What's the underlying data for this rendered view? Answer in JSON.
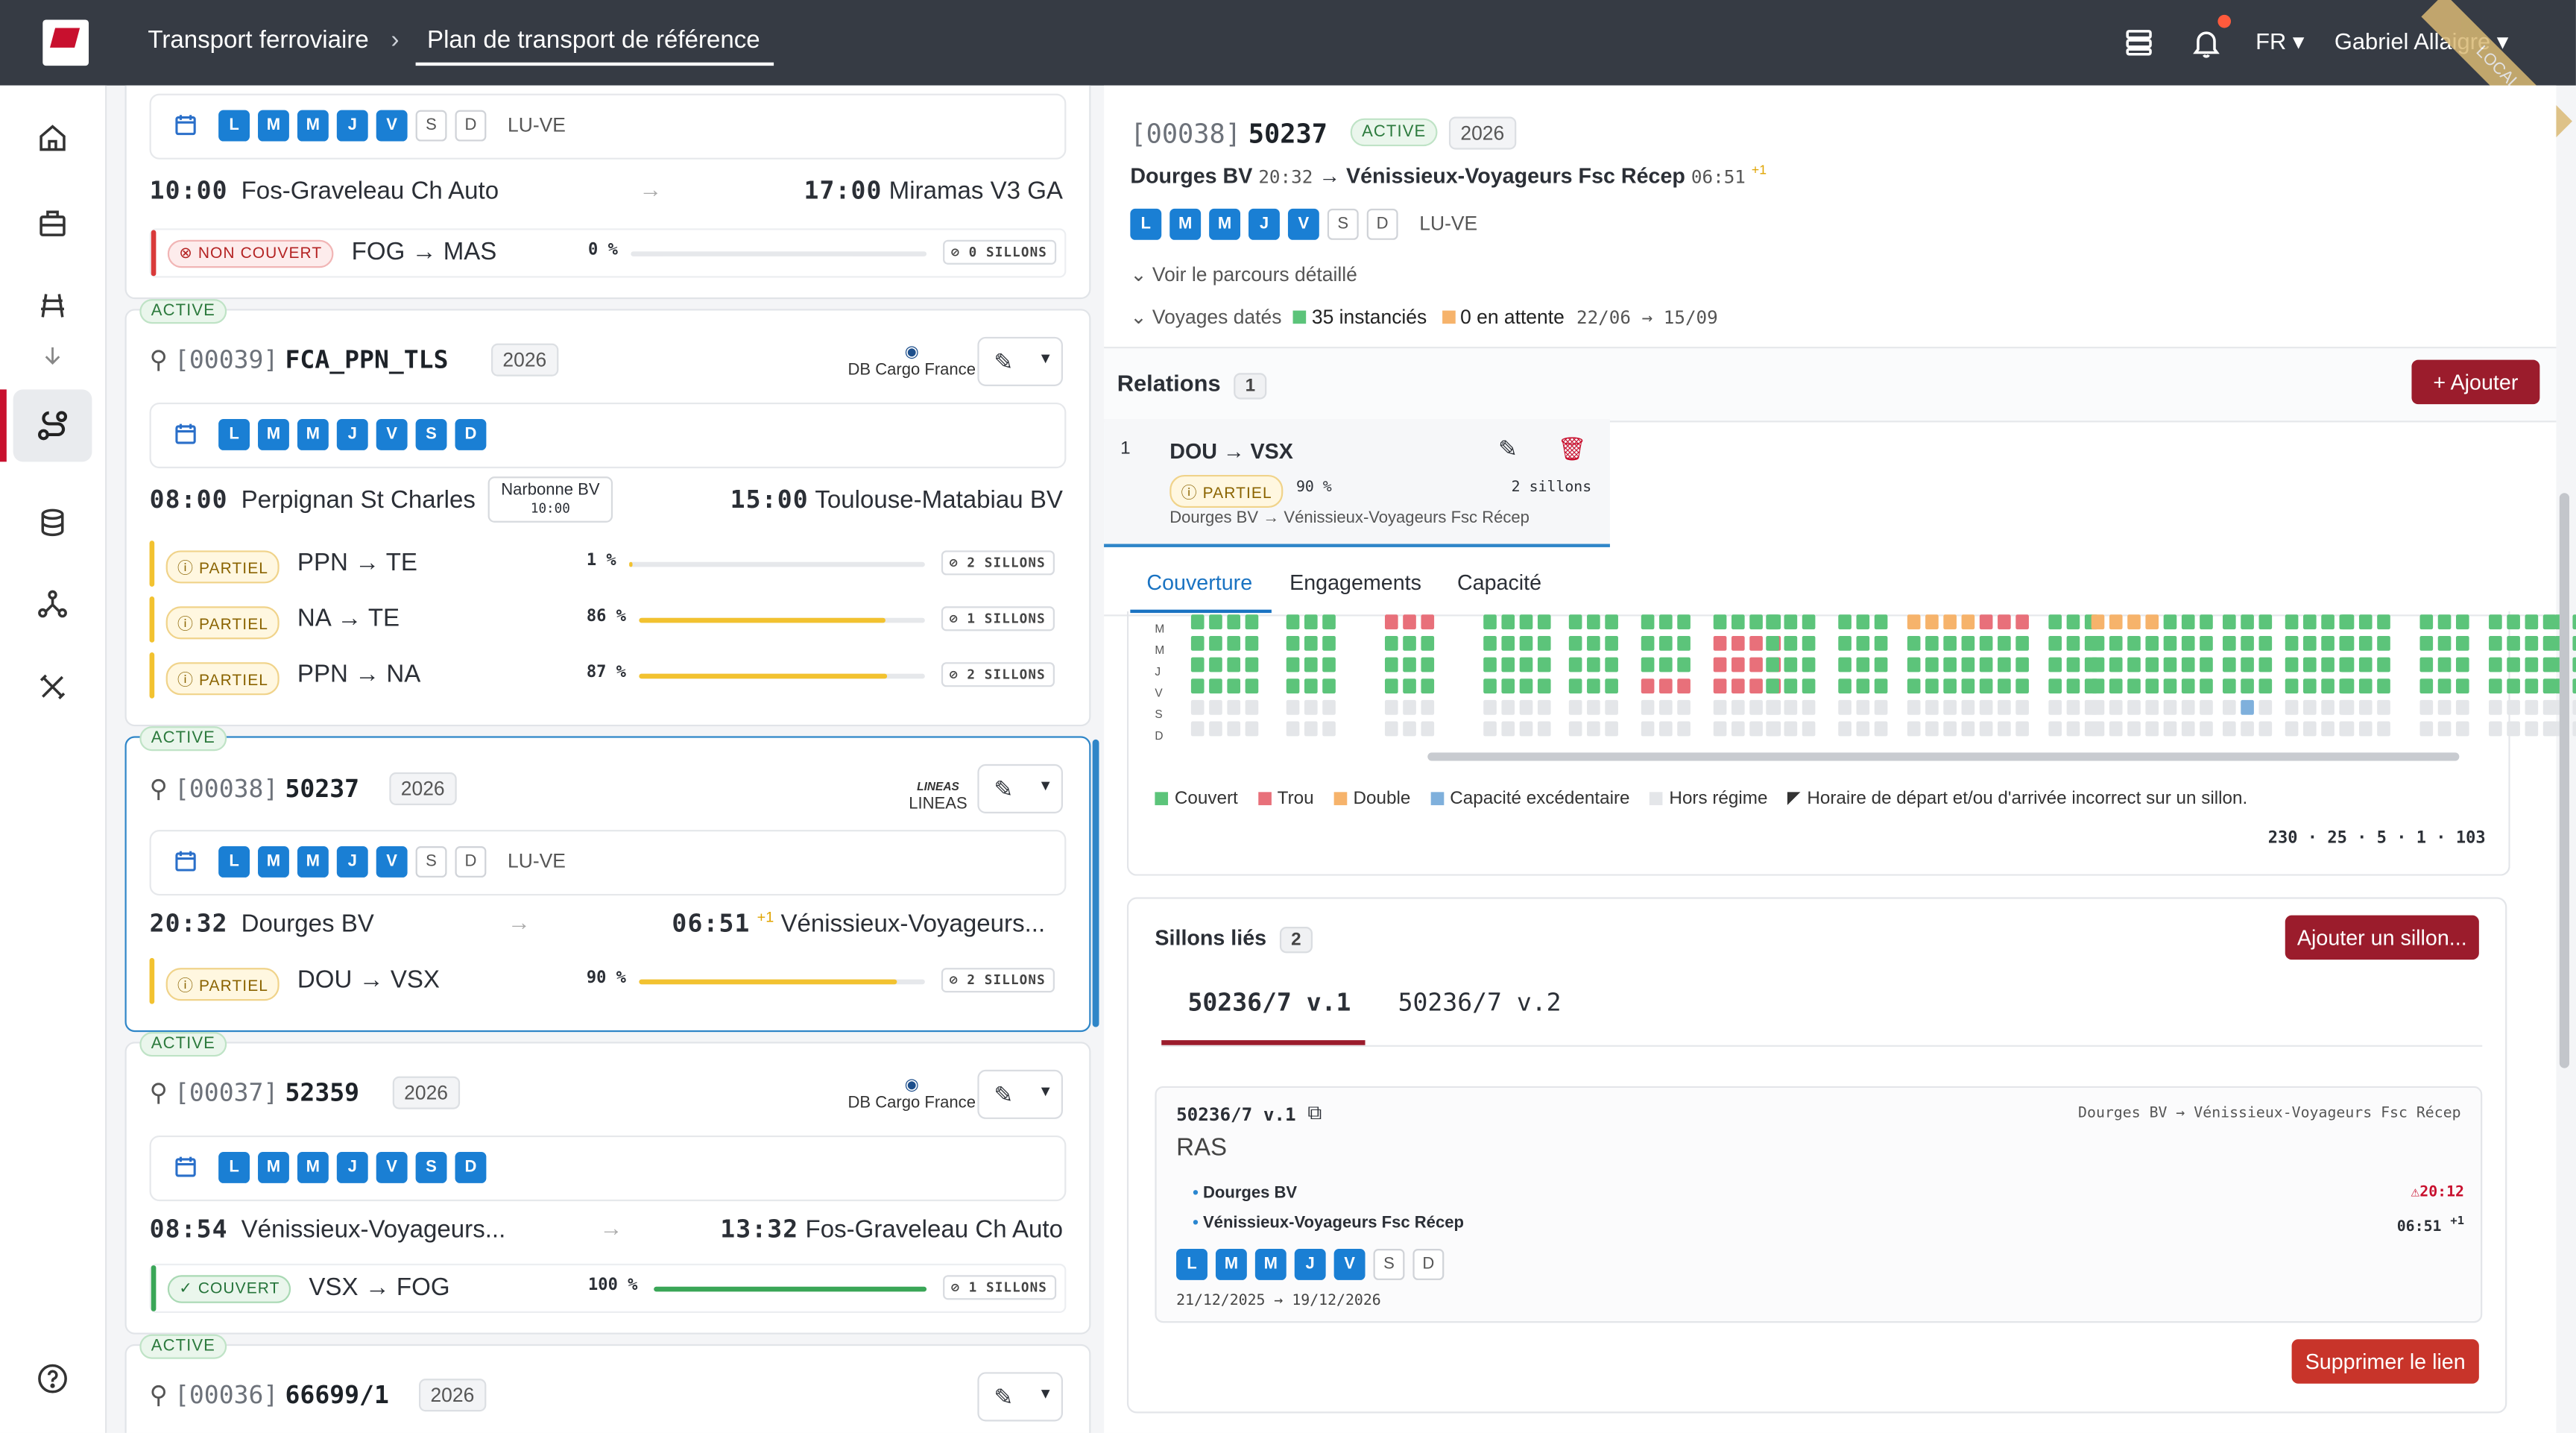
{
  "header": {
    "breadcrumb": [
      "Transport ferroviaire",
      "Plan de transport de référence"
    ],
    "lang": "FR",
    "user": "Gabriel Allaigre",
    "env_ribbon": "LOCAL"
  },
  "sidebar": [
    "home-icon",
    "package-icon",
    "rail-track-icon",
    "arrow-down-icon",
    "route-icon",
    "database-icon",
    "network-icon",
    "tools-icon",
    "help-icon"
  ],
  "cards": [
    {
      "days": [
        "L",
        "M",
        "M",
        "J",
        "V",
        "S",
        "D"
      ],
      "days_on": [
        1,
        1,
        1,
        1,
        1,
        0,
        0
      ],
      "days_label": "LU-VE",
      "dep_time": "10:00",
      "dep_station": "Fos-Graveleau Ch Auto",
      "arr_time": "17:00",
      "arr_station": "Miramas V3 GA",
      "segments": [
        {
          "status": "NON COUVERT",
          "route": "FOG → MAS",
          "pct": "0 %",
          "fill": 0,
          "sillons": "0 SILLONS",
          "kind": "nc"
        }
      ]
    },
    {
      "active": "ACTIVE",
      "code": "[00039]",
      "name": "FCA_PPN_TLS",
      "year": "2026",
      "operator": "DB Cargo France",
      "days": [
        "L",
        "M",
        "M",
        "J",
        "V",
        "S",
        "D"
      ],
      "days_on": [
        1,
        1,
        1,
        1,
        1,
        1,
        1
      ],
      "dep_time": "08:00",
      "dep_station": "Perpignan St Charles",
      "via_station": "Narbonne BV",
      "via_time": "10:00",
      "arr_time": "15:00",
      "arr_station": "Toulouse-Matabiau BV",
      "segments": [
        {
          "status": "PARTIEL",
          "route": "PPN → TE",
          "pct": "1 %",
          "fill": 0.01,
          "sillons": "2 SILLONS",
          "kind": "part"
        },
        {
          "status": "PARTIEL",
          "route": "NA → TE",
          "pct": "86 %",
          "fill": 0.86,
          "sillons": "1 SILLONS",
          "kind": "part"
        },
        {
          "status": "PARTIEL",
          "route": "PPN → NA",
          "pct": "87 %",
          "fill": 0.87,
          "sillons": "2 SILLONS",
          "kind": "part"
        }
      ]
    },
    {
      "active": "ACTIVE",
      "code": "[00038]",
      "name": "50237",
      "year": "2026",
      "operator": "LINEAS",
      "days": [
        "L",
        "M",
        "M",
        "J",
        "V",
        "S",
        "D"
      ],
      "days_on": [
        1,
        1,
        1,
        1,
        1,
        0,
        0
      ],
      "days_label": "LU-VE",
      "dep_time": "20:32",
      "dep_station": "Dourges BV",
      "arr_time": "06:51",
      "arr_plus": "+1",
      "arr_station": "Vénissieux-Voyageurs...",
      "segments": [
        {
          "status": "PARTIEL",
          "route": "DOU → VSX",
          "pct": "90 %",
          "fill": 0.9,
          "sillons": "2 SILLONS",
          "kind": "part"
        }
      ]
    },
    {
      "active": "ACTIVE",
      "code": "[00037]",
      "name": "52359",
      "year": "2026",
      "operator": "DB Cargo France",
      "days": [
        "L",
        "M",
        "M",
        "J",
        "V",
        "S",
        "D"
      ],
      "days_on": [
        1,
        1,
        1,
        1,
        1,
        1,
        1
      ],
      "dep_time": "08:54",
      "dep_station": "Vénissieux-Voyageurs...",
      "arr_time": "13:32",
      "arr_station": "Fos-Graveleau Ch Auto",
      "segments": [
        {
          "status": "COUVERT",
          "route": "VSX → FOG",
          "pct": "100 %",
          "fill": 1.0,
          "sillons": "1 SILLONS",
          "kind": "cov"
        }
      ]
    },
    {
      "active": "ACTIVE",
      "code": "[00036]",
      "name": "66699/1",
      "year": "2026"
    }
  ],
  "detail": {
    "code": "[00038]",
    "name": "50237",
    "status": "ACTIVE",
    "year": "2026",
    "from": "Dourges BV",
    "from_time": "20:32",
    "to": "Vénissieux-Voyageurs Fsc Récep",
    "to_time": "06:51",
    "to_plus": "+1",
    "days": [
      "L",
      "M",
      "M",
      "J",
      "V",
      "S",
      "D"
    ],
    "days_on": [
      1,
      1,
      1,
      1,
      1,
      0,
      0
    ],
    "days_label": "LU-VE",
    "see_route": "Voir le parcours détaillé",
    "trips_label": "Voyages datés",
    "trips_instances": "35 instanciés",
    "trips_pending": "0 en attente",
    "trips_range": "22/06 → 15/09",
    "relations_title": "Relations",
    "relations_count": "1",
    "add_label": "Ajouter",
    "relation": {
      "index": "1",
      "route": "DOU → VSX",
      "status": "PARTIEL",
      "pct": "90 %",
      "sillons": "2 sillons",
      "path": "Dourges BV → Vénissieux-Voyageurs Fsc Récep"
    },
    "tabs": [
      "Couverture",
      "Engagements",
      "Capacité"
    ],
    "coverage_day_labels": [
      "M",
      "M",
      "J",
      "V",
      "S",
      "D"
    ],
    "legend": [
      "Couvert",
      "Trou",
      "Double",
      "Capacité excédentaire",
      "Hors régime",
      "Horaire de départ et/ou d'arrivée incorrect sur un sillon."
    ],
    "colors": {
      "covered": "#5cc47a",
      "hole": "#e8707a",
      "double": "#f6b36b",
      "excess": "#7fb0dc",
      "off": "#e4e6e9"
    },
    "counts": "230 · 25 · 5 · 1 · 103",
    "sillons_title": "Sillons liés",
    "sillons_count": "2",
    "add_sillon": "Ajouter un sillon...",
    "sillon_tabs": [
      "50236/7 v.1",
      "50236/7 v.2"
    ],
    "version": {
      "name": "50236/7 v.1",
      "route": "Dourges BV → Vénissieux-Voyageurs Fsc Récep",
      "remark": "RAS",
      "stop1": "Dourges BV",
      "stop1_time": "20:12",
      "stop2": "Vénissieux-Voyageurs Fsc Récep",
      "stop2_time": "06:51",
      "stop2_plus": "+1",
      "days": [
        "L",
        "M",
        "M",
        "J",
        "V",
        "S",
        "D"
      ],
      "days_on": [
        1,
        1,
        1,
        1,
        1,
        0,
        0
      ],
      "validity": "21/12/2025 → 19/12/2026"
    },
    "delete_link": "Supprimer le lien"
  }
}
